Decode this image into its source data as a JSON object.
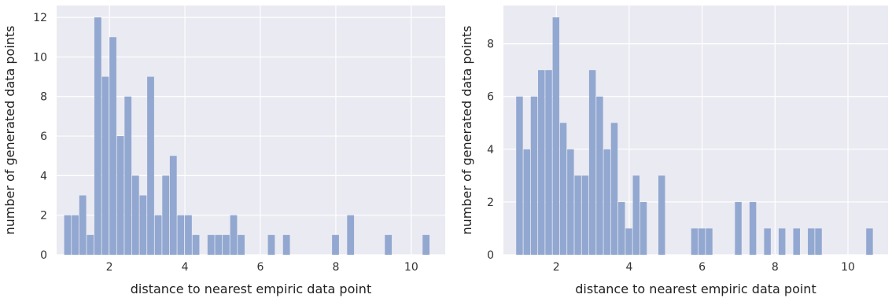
{
  "chart_data": [
    {
      "type": "bar",
      "xlabel": "distance to nearest empiric data point",
      "ylabel": "number of generated data points",
      "xlim": [
        0.6,
        10.9
      ],
      "ylim": [
        0,
        12.6
      ],
      "xticks": [
        2,
        4,
        6,
        8,
        10
      ],
      "yticks": [
        0,
        2,
        4,
        6,
        8,
        10,
        12
      ],
      "grid": true,
      "bar_width": 0.2,
      "bar_color": "#92a8d1",
      "background_color": "#eaeaf2",
      "bins": [
        {
          "x": 0.9,
          "value": 2
        },
        {
          "x": 1.1,
          "value": 2
        },
        {
          "x": 1.3,
          "value": 3
        },
        {
          "x": 1.5,
          "value": 1
        },
        {
          "x": 1.7,
          "value": 12
        },
        {
          "x": 1.9,
          "value": 9
        },
        {
          "x": 2.1,
          "value": 11
        },
        {
          "x": 2.3,
          "value": 6
        },
        {
          "x": 2.5,
          "value": 8
        },
        {
          "x": 2.7,
          "value": 4
        },
        {
          "x": 2.9,
          "value": 3
        },
        {
          "x": 3.1,
          "value": 9
        },
        {
          "x": 3.3,
          "value": 2
        },
        {
          "x": 3.5,
          "value": 4
        },
        {
          "x": 3.7,
          "value": 5
        },
        {
          "x": 3.9,
          "value": 2
        },
        {
          "x": 4.1,
          "value": 2
        },
        {
          "x": 4.3,
          "value": 1
        },
        {
          "x": 4.7,
          "value": 1
        },
        {
          "x": 4.9,
          "value": 1
        },
        {
          "x": 5.1,
          "value": 1
        },
        {
          "x": 5.3,
          "value": 2
        },
        {
          "x": 5.5,
          "value": 1
        },
        {
          "x": 6.3,
          "value": 1
        },
        {
          "x": 6.7,
          "value": 1
        },
        {
          "x": 8.0,
          "value": 1
        },
        {
          "x": 8.4,
          "value": 2
        },
        {
          "x": 9.4,
          "value": 1
        },
        {
          "x": 10.4,
          "value": 1
        }
      ]
    },
    {
      "type": "bar",
      "xlabel": "distance to nearest empiric data point",
      "ylabel": "number of generated data points",
      "xlim": [
        0.55,
        11.1
      ],
      "ylim": [
        0,
        9.45
      ],
      "xticks": [
        2,
        4,
        6,
        8,
        10
      ],
      "yticks": [
        0,
        2,
        4,
        6,
        8
      ],
      "grid": true,
      "bar_width": 0.2,
      "bar_color": "#92a8d1",
      "background_color": "#eaeaf2",
      "bins": [
        {
          "x": 1.0,
          "value": 6
        },
        {
          "x": 1.2,
          "value": 4
        },
        {
          "x": 1.4,
          "value": 6
        },
        {
          "x": 1.6,
          "value": 7
        },
        {
          "x": 1.8,
          "value": 7
        },
        {
          "x": 2.0,
          "value": 9
        },
        {
          "x": 2.2,
          "value": 5
        },
        {
          "x": 2.4,
          "value": 4
        },
        {
          "x": 2.6,
          "value": 3
        },
        {
          "x": 2.8,
          "value": 3
        },
        {
          "x": 3.0,
          "value": 7
        },
        {
          "x": 3.2,
          "value": 6
        },
        {
          "x": 3.4,
          "value": 4
        },
        {
          "x": 3.6,
          "value": 5
        },
        {
          "x": 3.8,
          "value": 2
        },
        {
          "x": 4.0,
          "value": 1
        },
        {
          "x": 4.2,
          "value": 3
        },
        {
          "x": 4.4,
          "value": 2
        },
        {
          "x": 4.9,
          "value": 3
        },
        {
          "x": 5.8,
          "value": 1
        },
        {
          "x": 6.0,
          "value": 1
        },
        {
          "x": 6.2,
          "value": 1
        },
        {
          "x": 7.0,
          "value": 2
        },
        {
          "x": 7.4,
          "value": 2
        },
        {
          "x": 7.8,
          "value": 1
        },
        {
          "x": 8.2,
          "value": 1
        },
        {
          "x": 8.6,
          "value": 1
        },
        {
          "x": 9.0,
          "value": 1
        },
        {
          "x": 9.2,
          "value": 1
        },
        {
          "x": 10.6,
          "value": 1
        }
      ]
    }
  ]
}
